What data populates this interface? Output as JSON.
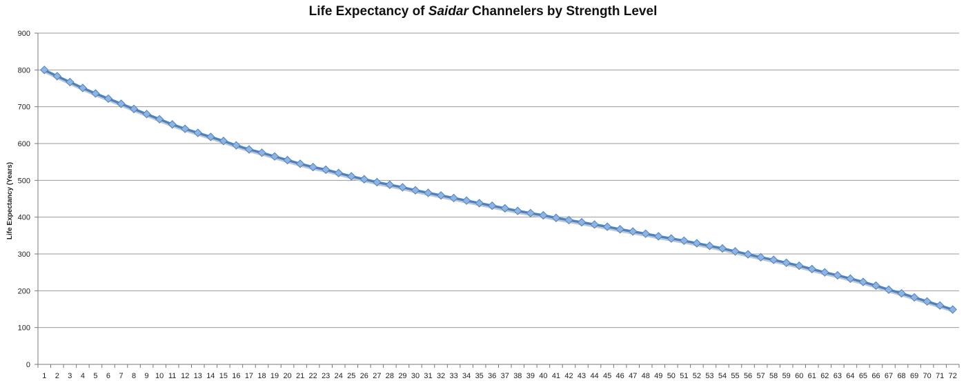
{
  "chart_data": {
    "type": "line",
    "title": {
      "before": "Life Expectancy of ",
      "emphasis": "Saidar",
      "after": " Channelers by Strength Level"
    },
    "xlabel": "",
    "ylabel": "Life Expectancy (Years)",
    "ylim": [
      0,
      900
    ],
    "yticks": [
      0,
      100,
      200,
      300,
      400,
      500,
      600,
      700,
      800,
      900
    ],
    "grid": true,
    "legend": "none",
    "series": [
      {
        "name": "Life Expectancy",
        "color": "#4f81bd",
        "marker_color": "#8db4e2",
        "x": [
          1,
          2,
          3,
          4,
          5,
          6,
          7,
          8,
          9,
          10,
          11,
          12,
          13,
          14,
          15,
          16,
          17,
          18,
          19,
          20,
          21,
          22,
          23,
          24,
          25,
          26,
          27,
          28,
          29,
          30,
          31,
          32,
          33,
          34,
          35,
          36,
          37,
          38,
          39,
          40,
          41,
          42,
          43,
          44,
          45,
          46,
          47,
          48,
          49,
          50,
          51,
          52,
          53,
          54,
          55,
          56,
          57,
          58,
          59,
          60,
          61,
          62,
          63,
          64,
          65,
          66,
          67,
          68,
          69,
          70,
          71,
          72
        ],
        "values": [
          800,
          783,
          767,
          751,
          736,
          722,
          708,
          694,
          680,
          666,
          652,
          640,
          629,
          618,
          607,
          595,
          584,
          575,
          565,
          555,
          545,
          536,
          529,
          520,
          511,
          503,
          495,
          488,
          481,
          473,
          466,
          459,
          452,
          445,
          438,
          431,
          424,
          417,
          411,
          405,
          398,
          392,
          386,
          380,
          374,
          367,
          361,
          355,
          348,
          342,
          336,
          329,
          322,
          315,
          307,
          299,
          291,
          284,
          276,
          268,
          259,
          250,
          242,
          233,
          224,
          214,
          203,
          193,
          182,
          171,
          160,
          149
        ]
      }
    ]
  }
}
